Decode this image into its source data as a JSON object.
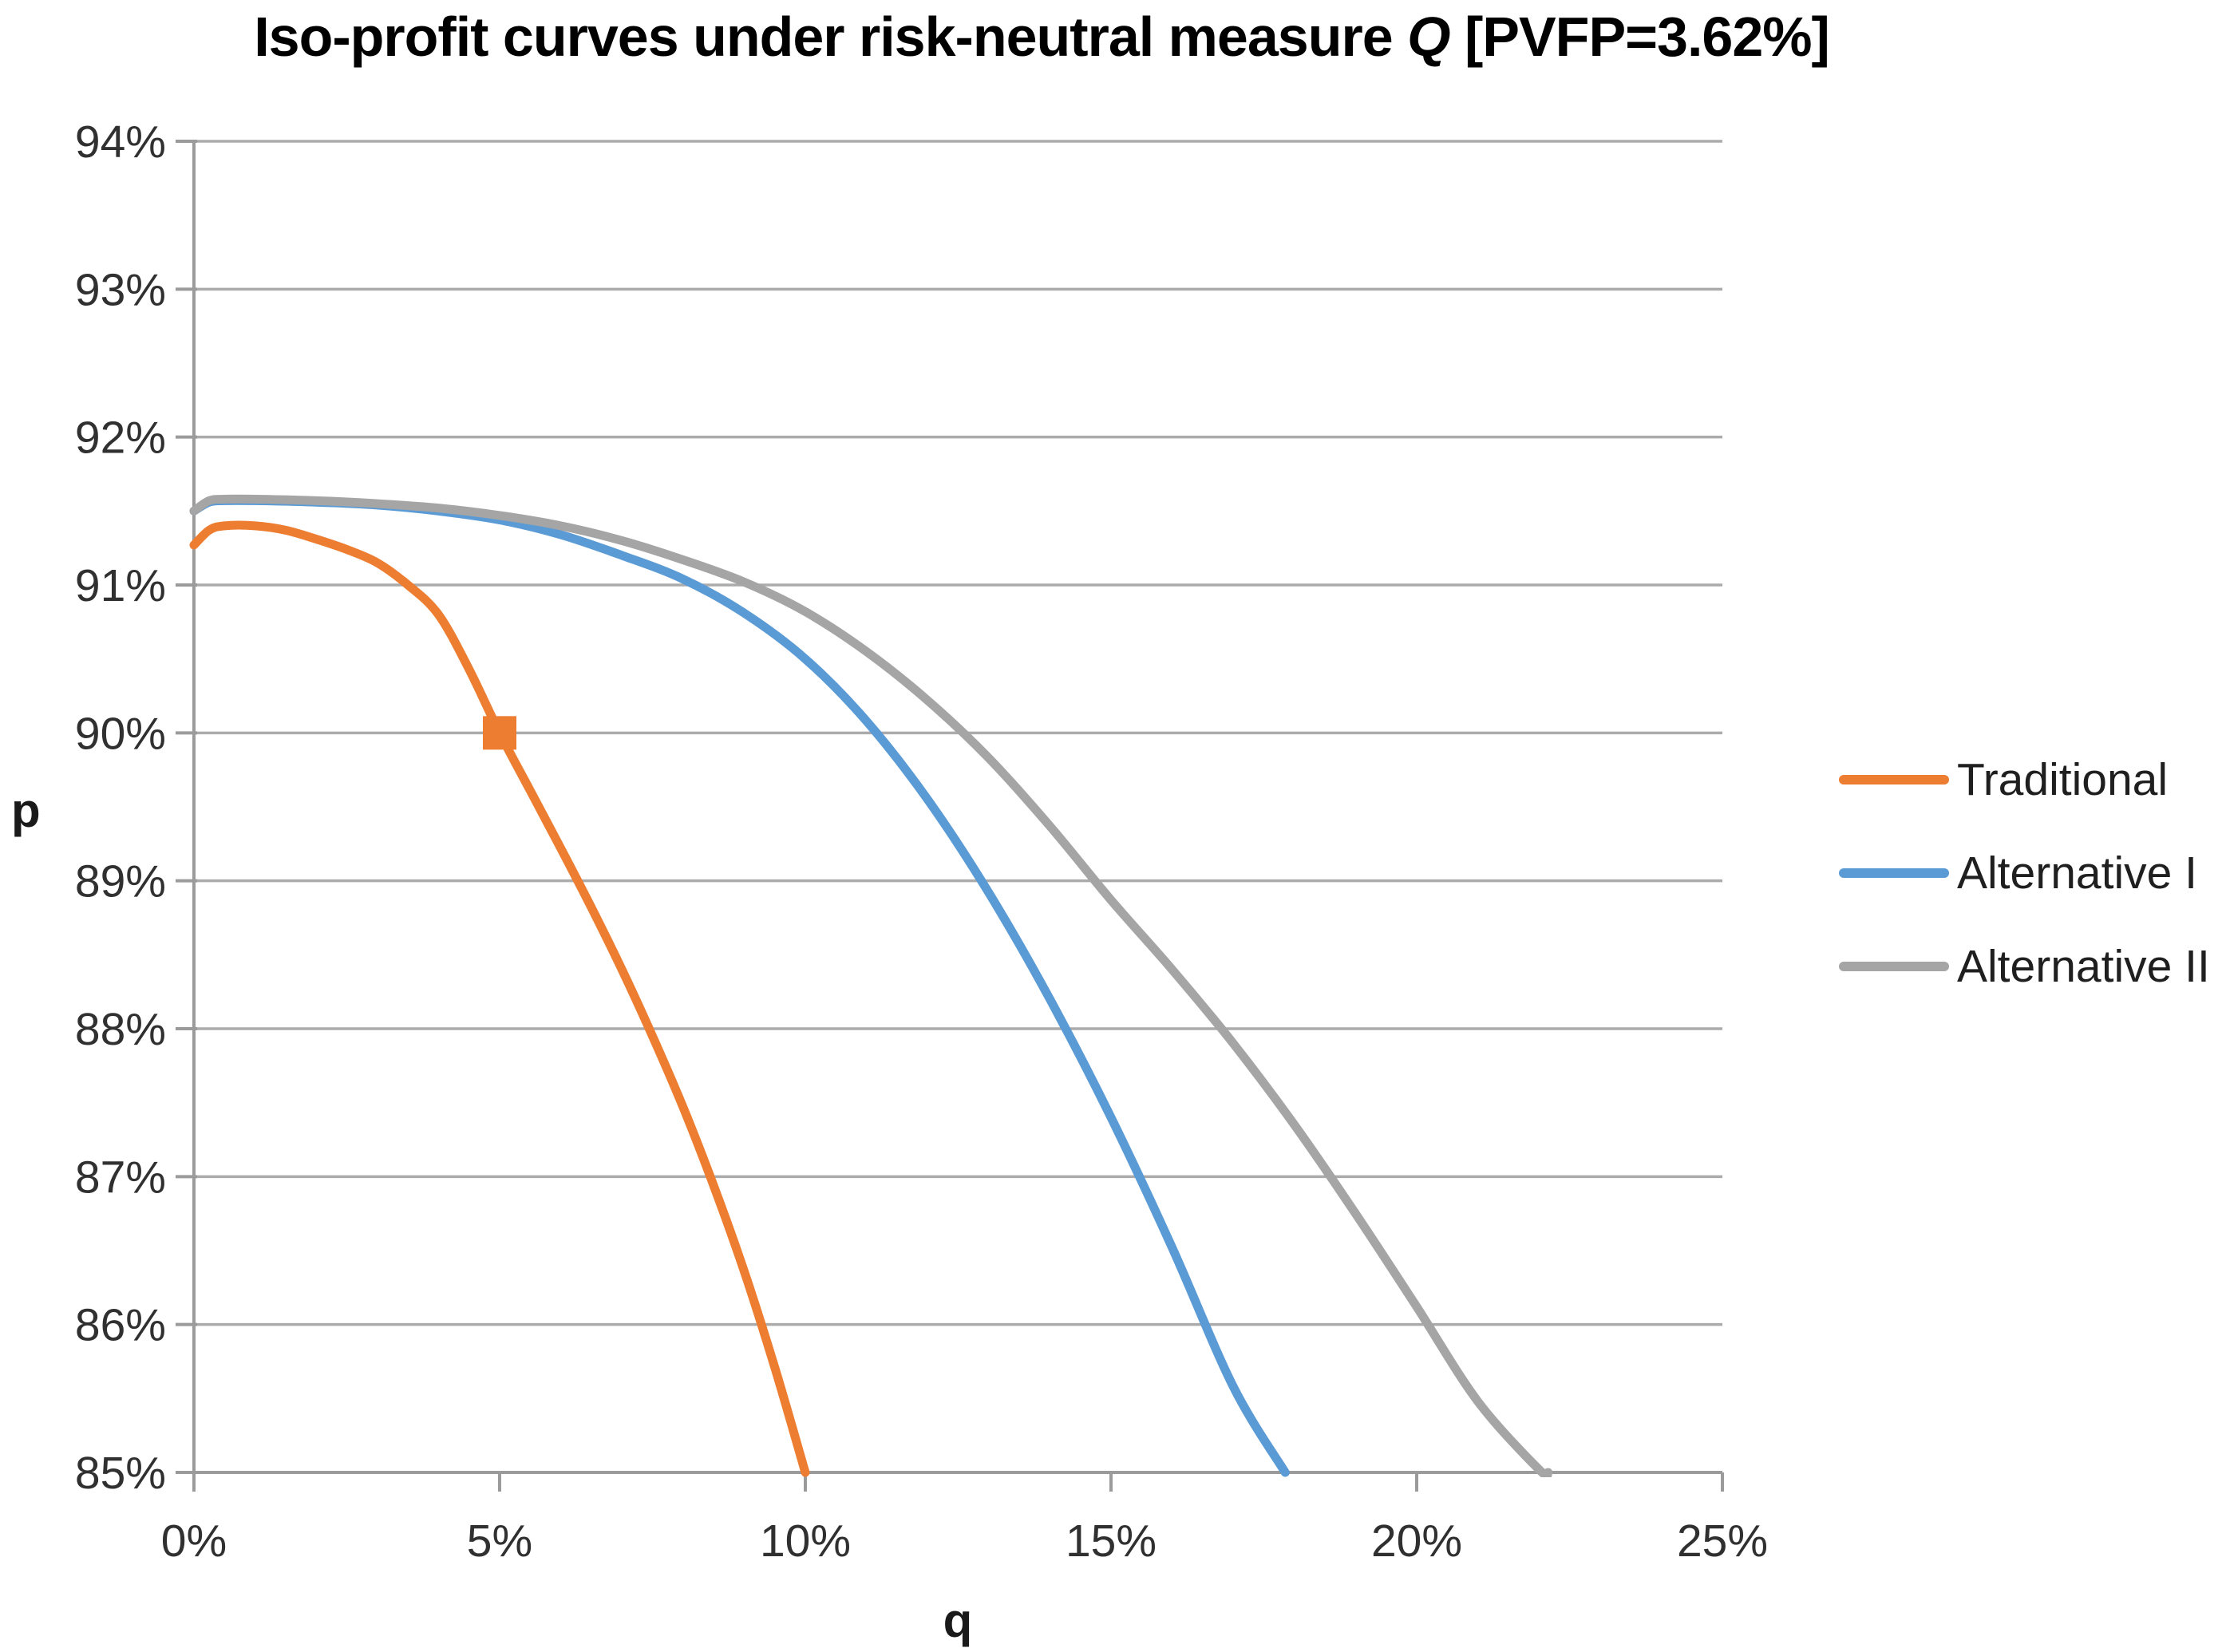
{
  "title": {
    "prefix": "Iso-profit curves under risk-neutral measure ",
    "emphasis": "Q",
    "suffix": " [PVFP=3.62%]"
  },
  "chart_data": {
    "type": "line",
    "title": "Iso-profit curves under risk-neutral measure Q [PVFP=3.62%]",
    "xlabel": "q",
    "ylabel": "p",
    "xlim": [
      0,
      25
    ],
    "ylim": [
      85,
      94
    ],
    "grid": "horizontal-only",
    "legend_position": "right",
    "x_ticks": [
      {
        "value": 0,
        "label": "0%"
      },
      {
        "value": 5,
        "label": "5%"
      },
      {
        "value": 10,
        "label": "10%"
      },
      {
        "value": 15,
        "label": "15%"
      },
      {
        "value": 20,
        "label": "20%"
      },
      {
        "value": 25,
        "label": "25%"
      }
    ],
    "y_ticks": [
      {
        "value": 85,
        "label": "85%"
      },
      {
        "value": 86,
        "label": "86%"
      },
      {
        "value": 87,
        "label": "87%"
      },
      {
        "value": 88,
        "label": "88%"
      },
      {
        "value": 89,
        "label": "89%"
      },
      {
        "value": 90,
        "label": "90%"
      },
      {
        "value": 91,
        "label": "91%"
      },
      {
        "value": 92,
        "label": "92%"
      },
      {
        "value": 93,
        "label": "93%"
      },
      {
        "value": 94,
        "label": "94%"
      }
    ],
    "series": [
      {
        "name": "Traditional",
        "color": "#ED7D31",
        "points": [
          [
            0,
            91.27
          ],
          [
            0.25,
            91.37
          ],
          [
            0.5,
            91.4
          ],
          [
            1,
            91.4
          ],
          [
            1.5,
            91.37
          ],
          [
            2,
            91.31
          ],
          [
            2.5,
            91.24
          ],
          [
            3,
            91.15
          ],
          [
            3.5,
            91.0
          ],
          [
            4,
            90.8
          ],
          [
            4.5,
            90.43
          ],
          [
            5,
            90.0
          ],
          [
            5.5,
            89.61
          ],
          [
            6,
            89.22
          ],
          [
            6.5,
            88.82
          ],
          [
            7,
            88.4
          ],
          [
            7.5,
            87.95
          ],
          [
            8,
            87.47
          ],
          [
            8.5,
            86.94
          ],
          [
            9,
            86.36
          ],
          [
            9.5,
            85.71
          ],
          [
            10,
            85.0
          ]
        ]
      },
      {
        "name": "Alternative I",
        "color": "#5B9BD5",
        "points": [
          [
            0,
            91.5
          ],
          [
            0.25,
            91.56
          ],
          [
            0.5,
            91.57
          ],
          [
            1,
            91.57
          ],
          [
            2,
            91.56
          ],
          [
            3,
            91.54
          ],
          [
            4,
            91.5
          ],
          [
            5,
            91.44
          ],
          [
            6,
            91.34
          ],
          [
            7,
            91.2
          ],
          [
            8,
            91.04
          ],
          [
            9,
            90.81
          ],
          [
            10,
            90.5
          ],
          [
            11,
            90.08
          ],
          [
            12,
            89.55
          ],
          [
            13,
            88.92
          ],
          [
            14,
            88.2
          ],
          [
            15,
            87.4
          ],
          [
            16,
            86.52
          ],
          [
            17,
            85.58
          ],
          [
            17.85,
            85.0
          ]
        ]
      },
      {
        "name": "Alternative II",
        "color": "#A5A5A5",
        "points": [
          [
            0,
            91.5
          ],
          [
            0.25,
            91.57
          ],
          [
            0.5,
            91.58
          ],
          [
            1,
            91.58
          ],
          [
            2,
            91.57
          ],
          [
            3,
            91.55
          ],
          [
            4,
            91.52
          ],
          [
            5,
            91.47
          ],
          [
            6,
            91.4
          ],
          [
            7,
            91.3
          ],
          [
            8,
            91.17
          ],
          [
            9,
            91.02
          ],
          [
            10,
            90.82
          ],
          [
            11,
            90.55
          ],
          [
            12,
            90.22
          ],
          [
            13,
            89.83
          ],
          [
            14,
            89.37
          ],
          [
            15,
            88.87
          ],
          [
            16,
            88.4
          ],
          [
            17,
            87.9
          ],
          [
            18,
            87.35
          ],
          [
            19,
            86.75
          ],
          [
            20,
            86.12
          ],
          [
            21,
            85.48
          ],
          [
            22,
            85.02
          ],
          [
            22.15,
            85.0
          ]
        ]
      }
    ],
    "marker": {
      "series": "Traditional",
      "x": 5,
      "y": 90,
      "shape": "square",
      "color": "#ED7D31"
    },
    "colors": {
      "gridline": "#ABABAB",
      "axis": "#9B9B9B",
      "tick_label": "#303030",
      "title_text": "#000000"
    }
  }
}
